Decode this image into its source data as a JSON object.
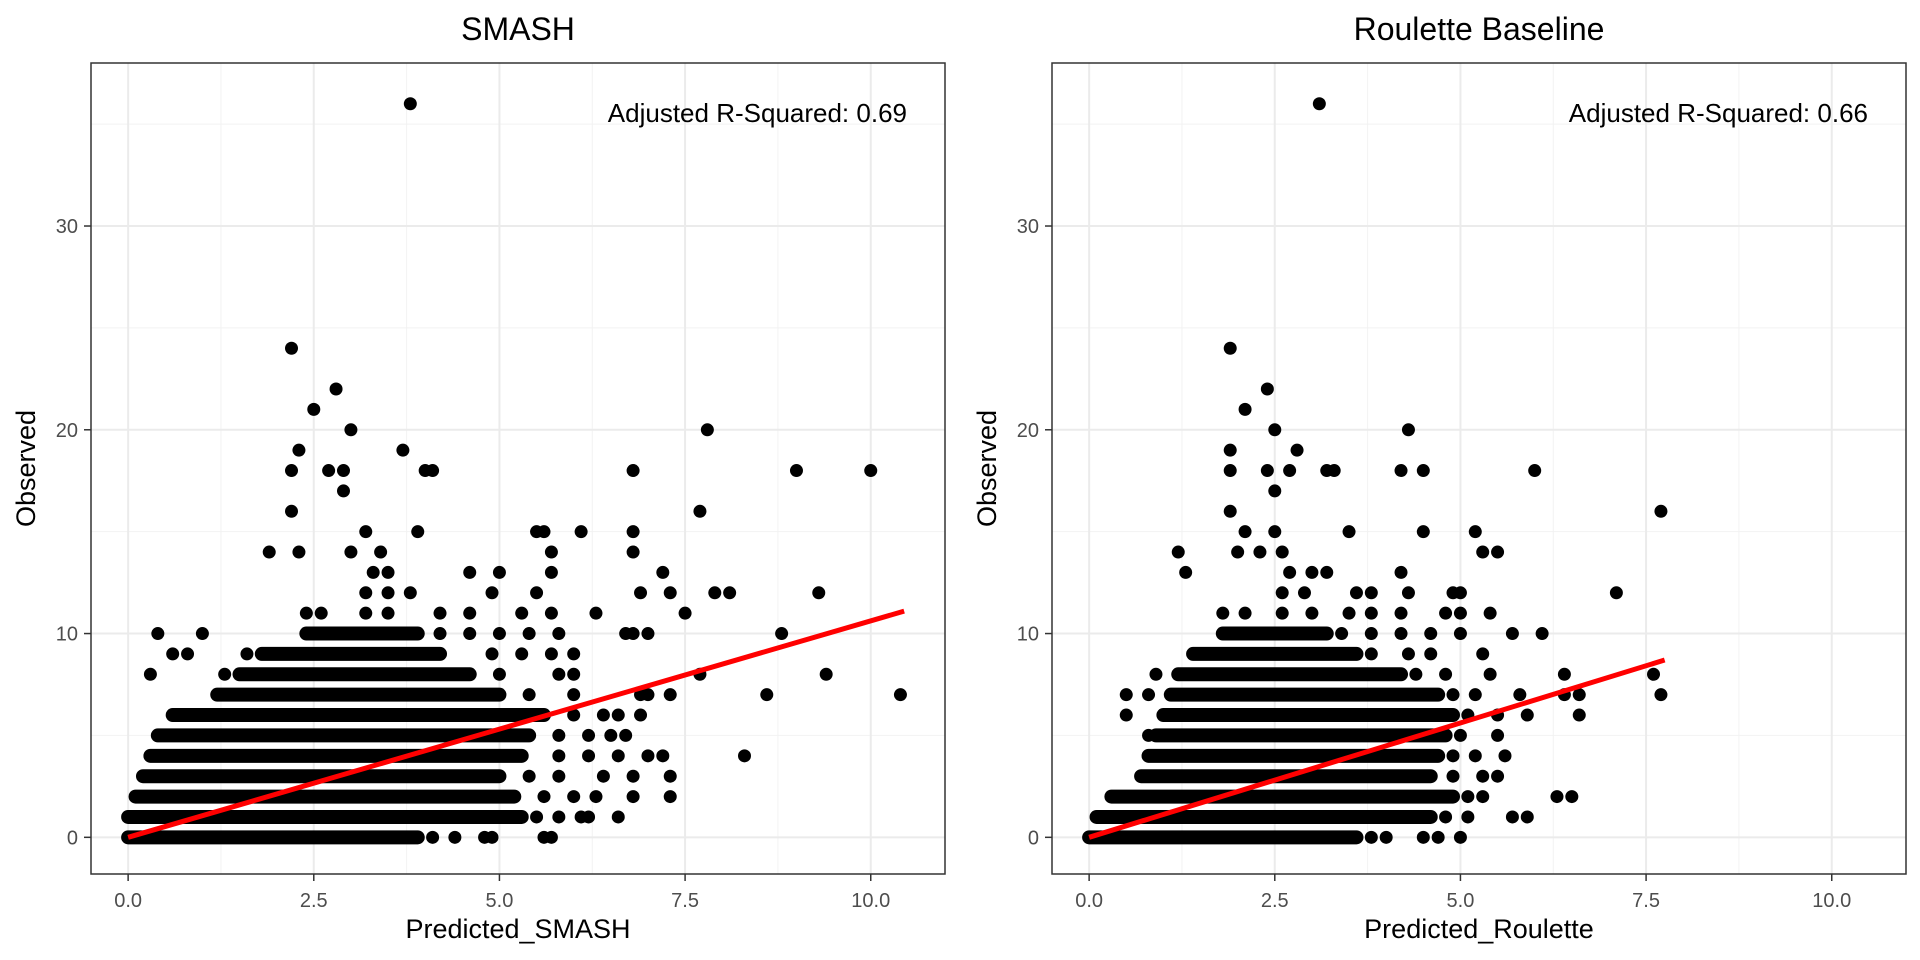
{
  "chart_data": [
    {
      "type": "scatter",
      "title": "SMASH",
      "xlabel": "Predicted_SMASH",
      "ylabel": "Observed",
      "xlim": [
        -0.5,
        11
      ],
      "ylim": [
        -1.8,
        38
      ],
      "x_ticks": [
        0,
        2.5,
        5,
        7.5,
        10
      ],
      "x_tick_labels": [
        "0.0",
        "2.5",
        "5.0",
        "7.5",
        "10.0"
      ],
      "y_ticks": [
        0,
        10,
        20,
        30
      ],
      "y_tick_labels": [
        "0",
        "10",
        "20",
        "30"
      ],
      "grid": true,
      "annotation": "Adjusted R-Squared: 0.69",
      "point_color": "#000000",
      "dense_rows": [
        {
          "y": 0,
          "x_start": 0.0,
          "x_end": 3.9
        },
        {
          "y": 1,
          "x_start": 0.0,
          "x_end": 5.3
        },
        {
          "y": 2,
          "x_start": 0.1,
          "x_end": 5.2
        },
        {
          "y": 3,
          "x_start": 0.2,
          "x_end": 5.0
        },
        {
          "y": 4,
          "x_start": 0.3,
          "x_end": 5.3
        },
        {
          "y": 5,
          "x_start": 0.4,
          "x_end": 5.4
        },
        {
          "y": 6,
          "x_start": 0.6,
          "x_end": 5.6
        },
        {
          "y": 7,
          "x_start": 1.2,
          "x_end": 5.0
        },
        {
          "y": 8,
          "x_start": 1.5,
          "x_end": 4.6
        },
        {
          "y": 9,
          "x_start": 1.8,
          "x_end": 4.2
        },
        {
          "y": 10,
          "x_start": 2.4,
          "x_end": 3.9
        }
      ],
      "points": [
        {
          "x": 0.4,
          "y": 10
        },
        {
          "x": 0.3,
          "y": 8
        },
        {
          "x": 0.6,
          "y": 9
        },
        {
          "x": 0.8,
          "y": 9
        },
        {
          "x": 1.0,
          "y": 10
        },
        {
          "x": 1.3,
          "y": 8
        },
        {
          "x": 1.6,
          "y": 9
        },
        {
          "x": 4.1,
          "y": 0
        },
        {
          "x": 4.4,
          "y": 0
        },
        {
          "x": 4.8,
          "y": 0
        },
        {
          "x": 4.9,
          "y": 0
        },
        {
          "x": 5.6,
          "y": 0
        },
        {
          "x": 5.7,
          "y": 0
        },
        {
          "x": 5.5,
          "y": 1
        },
        {
          "x": 5.8,
          "y": 1
        },
        {
          "x": 6.1,
          "y": 1
        },
        {
          "x": 6.2,
          "y": 1
        },
        {
          "x": 6.6,
          "y": 1
        },
        {
          "x": 5.6,
          "y": 2
        },
        {
          "x": 6.0,
          "y": 2
        },
        {
          "x": 6.3,
          "y": 2
        },
        {
          "x": 6.8,
          "y": 2
        },
        {
          "x": 7.3,
          "y": 2
        },
        {
          "x": 5.4,
          "y": 3
        },
        {
          "x": 5.8,
          "y": 3
        },
        {
          "x": 6.4,
          "y": 3
        },
        {
          "x": 6.8,
          "y": 3
        },
        {
          "x": 7.3,
          "y": 3
        },
        {
          "x": 5.8,
          "y": 4
        },
        {
          "x": 6.2,
          "y": 4
        },
        {
          "x": 6.6,
          "y": 4
        },
        {
          "x": 7.0,
          "y": 4
        },
        {
          "x": 7.2,
          "y": 4
        },
        {
          "x": 8.3,
          "y": 4
        },
        {
          "x": 5.8,
          "y": 5
        },
        {
          "x": 6.2,
          "y": 5
        },
        {
          "x": 6.5,
          "y": 5
        },
        {
          "x": 6.7,
          "y": 5
        },
        {
          "x": 6.0,
          "y": 6
        },
        {
          "x": 6.4,
          "y": 6
        },
        {
          "x": 6.6,
          "y": 6
        },
        {
          "x": 6.9,
          "y": 6
        },
        {
          "x": 5.4,
          "y": 7
        },
        {
          "x": 6.0,
          "y": 7
        },
        {
          "x": 6.9,
          "y": 7
        },
        {
          "x": 7.0,
          "y": 7
        },
        {
          "x": 7.3,
          "y": 7
        },
        {
          "x": 8.6,
          "y": 7
        },
        {
          "x": 10.4,
          "y": 7
        },
        {
          "x": 5.0,
          "y": 8
        },
        {
          "x": 5.8,
          "y": 8
        },
        {
          "x": 6.0,
          "y": 8
        },
        {
          "x": 7.7,
          "y": 8
        },
        {
          "x": 9.4,
          "y": 8
        },
        {
          "x": 4.9,
          "y": 9
        },
        {
          "x": 5.3,
          "y": 9
        },
        {
          "x": 5.7,
          "y": 9
        },
        {
          "x": 6.0,
          "y": 9
        },
        {
          "x": 4.2,
          "y": 10
        },
        {
          "x": 4.6,
          "y": 10
        },
        {
          "x": 5.0,
          "y": 10
        },
        {
          "x": 5.4,
          "y": 10
        },
        {
          "x": 5.8,
          "y": 10
        },
        {
          "x": 6.7,
          "y": 10
        },
        {
          "x": 6.8,
          "y": 10
        },
        {
          "x": 7.0,
          "y": 10
        },
        {
          "x": 8.8,
          "y": 10
        },
        {
          "x": 2.4,
          "y": 11
        },
        {
          "x": 2.6,
          "y": 11
        },
        {
          "x": 3.2,
          "y": 11
        },
        {
          "x": 3.5,
          "y": 11
        },
        {
          "x": 4.2,
          "y": 11
        },
        {
          "x": 4.6,
          "y": 11
        },
        {
          "x": 5.3,
          "y": 11
        },
        {
          "x": 5.7,
          "y": 11
        },
        {
          "x": 6.3,
          "y": 11
        },
        {
          "x": 7.5,
          "y": 11
        },
        {
          "x": 3.2,
          "y": 12
        },
        {
          "x": 3.5,
          "y": 12
        },
        {
          "x": 3.8,
          "y": 12
        },
        {
          "x": 4.9,
          "y": 12
        },
        {
          "x": 5.5,
          "y": 12
        },
        {
          "x": 6.9,
          "y": 12
        },
        {
          "x": 7.3,
          "y": 12
        },
        {
          "x": 7.9,
          "y": 12
        },
        {
          "x": 8.1,
          "y": 12
        },
        {
          "x": 9.3,
          "y": 12
        },
        {
          "x": 3.3,
          "y": 13
        },
        {
          "x": 3.5,
          "y": 13
        },
        {
          "x": 4.6,
          "y": 13
        },
        {
          "x": 5.0,
          "y": 13
        },
        {
          "x": 5.7,
          "y": 13
        },
        {
          "x": 7.2,
          "y": 13
        },
        {
          "x": 1.9,
          "y": 14
        },
        {
          "x": 2.3,
          "y": 14
        },
        {
          "x": 3.0,
          "y": 14
        },
        {
          "x": 3.4,
          "y": 14
        },
        {
          "x": 5.7,
          "y": 14
        },
        {
          "x": 6.8,
          "y": 14
        },
        {
          "x": 3.2,
          "y": 15
        },
        {
          "x": 3.9,
          "y": 15
        },
        {
          "x": 5.5,
          "y": 15
        },
        {
          "x": 5.6,
          "y": 15
        },
        {
          "x": 6.1,
          "y": 15
        },
        {
          "x": 6.8,
          "y": 15
        },
        {
          "x": 2.2,
          "y": 16
        },
        {
          "x": 7.7,
          "y": 16
        },
        {
          "x": 2.9,
          "y": 17
        },
        {
          "x": 2.2,
          "y": 18
        },
        {
          "x": 2.7,
          "y": 18
        },
        {
          "x": 2.9,
          "y": 18
        },
        {
          "x": 4.0,
          "y": 18
        },
        {
          "x": 4.1,
          "y": 18
        },
        {
          "x": 6.8,
          "y": 18
        },
        {
          "x": 9.0,
          "y": 18
        },
        {
          "x": 10.0,
          "y": 18
        },
        {
          "x": 2.3,
          "y": 19
        },
        {
          "x": 3.7,
          "y": 19
        },
        {
          "x": 3.0,
          "y": 20
        },
        {
          "x": 7.8,
          "y": 20
        },
        {
          "x": 2.5,
          "y": 21
        },
        {
          "x": 2.8,
          "y": 22
        },
        {
          "x": 2.2,
          "y": 24
        },
        {
          "x": 3.8,
          "y": 36
        }
      ],
      "fit_line": {
        "color": "#ff0000",
        "x": [
          0.0,
          10.45
        ],
        "y": [
          0.0,
          11.1
        ]
      }
    },
    {
      "type": "scatter",
      "title": "Roulette Baseline",
      "xlabel": "Predicted_Roulette",
      "ylabel": "Observed",
      "xlim": [
        -0.5,
        11
      ],
      "ylim": [
        -1.8,
        38
      ],
      "x_ticks": [
        0,
        2.5,
        5,
        7.5,
        10
      ],
      "x_tick_labels": [
        "0.0",
        "2.5",
        "5.0",
        "7.5",
        "10.0"
      ],
      "y_ticks": [
        0,
        10,
        20,
        30
      ],
      "y_tick_labels": [
        "0",
        "10",
        "20",
        "30"
      ],
      "grid": true,
      "annotation": "Adjusted R-Squared: 0.66",
      "point_color": "#000000",
      "dense_rows": [
        {
          "y": 0,
          "x_start": 0.0,
          "x_end": 3.6
        },
        {
          "y": 1,
          "x_start": 0.1,
          "x_end": 4.6
        },
        {
          "y": 2,
          "x_start": 0.3,
          "x_end": 4.9
        },
        {
          "y": 3,
          "x_start": 0.7,
          "x_end": 4.6
        },
        {
          "y": 4,
          "x_start": 0.8,
          "x_end": 4.7
        },
        {
          "y": 5,
          "x_start": 0.9,
          "x_end": 4.8
        },
        {
          "y": 6,
          "x_start": 1.0,
          "x_end": 4.9
        },
        {
          "y": 7,
          "x_start": 1.1,
          "x_end": 4.7
        },
        {
          "y": 8,
          "x_start": 1.2,
          "x_end": 4.2
        },
        {
          "y": 9,
          "x_start": 1.4,
          "x_end": 3.6
        },
        {
          "y": 10,
          "x_start": 1.8,
          "x_end": 3.2
        }
      ],
      "points": [
        {
          "x": 0.5,
          "y": 6
        },
        {
          "x": 0.5,
          "y": 7
        },
        {
          "x": 0.8,
          "y": 7
        },
        {
          "x": 0.9,
          "y": 8
        },
        {
          "x": 0.8,
          "y": 5
        },
        {
          "x": 3.8,
          "y": 0
        },
        {
          "x": 4.0,
          "y": 0
        },
        {
          "x": 4.5,
          "y": 0
        },
        {
          "x": 4.7,
          "y": 0
        },
        {
          "x": 5.0,
          "y": 0
        },
        {
          "x": 4.8,
          "y": 1
        },
        {
          "x": 5.1,
          "y": 1
        },
        {
          "x": 5.7,
          "y": 1
        },
        {
          "x": 5.9,
          "y": 1
        },
        {
          "x": 5.1,
          "y": 2
        },
        {
          "x": 5.3,
          "y": 2
        },
        {
          "x": 6.3,
          "y": 2
        },
        {
          "x": 6.5,
          "y": 2
        },
        {
          "x": 4.9,
          "y": 3
        },
        {
          "x": 5.3,
          "y": 3
        },
        {
          "x": 5.5,
          "y": 3
        },
        {
          "x": 4.9,
          "y": 4
        },
        {
          "x": 5.2,
          "y": 4
        },
        {
          "x": 5.6,
          "y": 4
        },
        {
          "x": 5.0,
          "y": 5
        },
        {
          "x": 5.5,
          "y": 5
        },
        {
          "x": 5.1,
          "y": 6
        },
        {
          "x": 5.5,
          "y": 6
        },
        {
          "x": 5.9,
          "y": 6
        },
        {
          "x": 6.6,
          "y": 6
        },
        {
          "x": 4.9,
          "y": 7
        },
        {
          "x": 5.2,
          "y": 7
        },
        {
          "x": 5.8,
          "y": 7
        },
        {
          "x": 6.4,
          "y": 7
        },
        {
          "x": 6.6,
          "y": 7
        },
        {
          "x": 7.7,
          "y": 7
        },
        {
          "x": 4.4,
          "y": 8
        },
        {
          "x": 4.8,
          "y": 8
        },
        {
          "x": 5.4,
          "y": 8
        },
        {
          "x": 6.4,
          "y": 8
        },
        {
          "x": 7.6,
          "y": 8
        },
        {
          "x": 3.8,
          "y": 9
        },
        {
          "x": 4.3,
          "y": 9
        },
        {
          "x": 4.6,
          "y": 9
        },
        {
          "x": 5.3,
          "y": 9
        },
        {
          "x": 3.4,
          "y": 10
        },
        {
          "x": 3.8,
          "y": 10
        },
        {
          "x": 4.2,
          "y": 10
        },
        {
          "x": 4.6,
          "y": 10
        },
        {
          "x": 5.0,
          "y": 10
        },
        {
          "x": 5.7,
          "y": 10
        },
        {
          "x": 6.1,
          "y": 10
        },
        {
          "x": 1.8,
          "y": 11
        },
        {
          "x": 2.1,
          "y": 11
        },
        {
          "x": 2.6,
          "y": 11
        },
        {
          "x": 3.0,
          "y": 11
        },
        {
          "x": 3.5,
          "y": 11
        },
        {
          "x": 3.8,
          "y": 11
        },
        {
          "x": 4.2,
          "y": 11
        },
        {
          "x": 4.8,
          "y": 11
        },
        {
          "x": 5.0,
          "y": 11
        },
        {
          "x": 5.4,
          "y": 11
        },
        {
          "x": 2.6,
          "y": 12
        },
        {
          "x": 2.9,
          "y": 12
        },
        {
          "x": 3.6,
          "y": 12
        },
        {
          "x": 3.8,
          "y": 12
        },
        {
          "x": 4.3,
          "y": 12
        },
        {
          "x": 4.9,
          "y": 12
        },
        {
          "x": 5.0,
          "y": 12
        },
        {
          "x": 7.1,
          "y": 12
        },
        {
          "x": 1.3,
          "y": 13
        },
        {
          "x": 2.7,
          "y": 13
        },
        {
          "x": 3.0,
          "y": 13
        },
        {
          "x": 3.2,
          "y": 13
        },
        {
          "x": 4.2,
          "y": 13
        },
        {
          "x": 1.2,
          "y": 14
        },
        {
          "x": 2.0,
          "y": 14
        },
        {
          "x": 2.3,
          "y": 14
        },
        {
          "x": 2.6,
          "y": 14
        },
        {
          "x": 5.3,
          "y": 14
        },
        {
          "x": 5.5,
          "y": 14
        },
        {
          "x": 2.1,
          "y": 15
        },
        {
          "x": 2.5,
          "y": 15
        },
        {
          "x": 3.5,
          "y": 15
        },
        {
          "x": 4.5,
          "y": 15
        },
        {
          "x": 5.2,
          "y": 15
        },
        {
          "x": 1.9,
          "y": 16
        },
        {
          "x": 7.7,
          "y": 16
        },
        {
          "x": 2.5,
          "y": 17
        },
        {
          "x": 1.9,
          "y": 18
        },
        {
          "x": 2.4,
          "y": 18
        },
        {
          "x": 2.7,
          "y": 18
        },
        {
          "x": 3.2,
          "y": 18
        },
        {
          "x": 3.3,
          "y": 18
        },
        {
          "x": 4.2,
          "y": 18
        },
        {
          "x": 4.5,
          "y": 18
        },
        {
          "x": 6.0,
          "y": 18
        },
        {
          "x": 1.9,
          "y": 19
        },
        {
          "x": 2.8,
          "y": 19
        },
        {
          "x": 2.5,
          "y": 20
        },
        {
          "x": 4.3,
          "y": 20
        },
        {
          "x": 2.1,
          "y": 21
        },
        {
          "x": 2.4,
          "y": 22
        },
        {
          "x": 1.9,
          "y": 24
        },
        {
          "x": 3.1,
          "y": 36
        }
      ],
      "fit_line": {
        "color": "#ff0000",
        "x": [
          0.0,
          7.75
        ],
        "y": [
          0.0,
          8.7
        ]
      }
    }
  ]
}
